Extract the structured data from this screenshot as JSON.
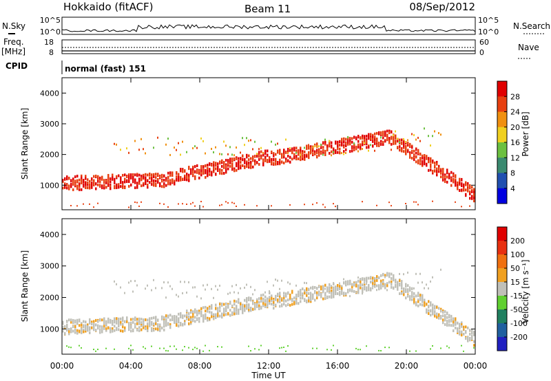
{
  "header": {
    "station": "Hokkaido (fitACF)",
    "beam": "Beam 11",
    "date": "08/Sep/2012"
  },
  "strip_panels": {
    "nsky_label": "N.Sky",
    "nsky_ticks": [
      "10^5",
      "10^0"
    ],
    "nsearch_label": "N.Search",
    "nsearch_ticks": [
      "10^5",
      "10^0"
    ],
    "freq_label": "Freq.",
    "freq_unit": "[MHz]",
    "freq_ticks": [
      "18",
      "8"
    ],
    "nave_label": "Nave",
    "nave_ticks": [
      "60",
      "0"
    ],
    "cpid_label": "CPID",
    "cpid_value": "normal (fast) 151"
  },
  "chart_data": [
    {
      "type": "heatmap",
      "panel": "power",
      "ylabel": "Slant Range [km]",
      "xlabel": "",
      "y_ticks": [
        "1000",
        "2000",
        "3000",
        "4000"
      ],
      "ylim": [
        200,
        4500
      ],
      "xlim": [
        "00:00",
        "24:00"
      ],
      "colorbar": {
        "label": "Power [dB]",
        "ticks": [
          "28",
          "24",
          "20",
          "16",
          "12",
          "8",
          "4"
        ],
        "colors": [
          "#0000e0",
          "#2050b0",
          "#3a8a70",
          "#6cc040",
          "#f0d020",
          "#f09010",
          "#e84010",
          "#e00000"
        ]
      }
    },
    {
      "type": "heatmap",
      "panel": "velocity",
      "ylabel": "Slant Range [km]",
      "xlabel": "Time UT",
      "y_ticks": [
        "1000",
        "2000",
        "3000",
        "4000"
      ],
      "ylim": [
        200,
        4500
      ],
      "x_ticks": [
        "00:00",
        "04:00",
        "08:00",
        "12:00",
        "16:00",
        "20:00",
        "00:00"
      ],
      "colorbar": {
        "label": "Velocity [m s⁻¹]",
        "ticks": [
          "200",
          "100",
          "50",
          "15",
          "-15",
          "-50",
          "-100",
          "-200"
        ],
        "colors": [
          "#2020c0",
          "#2060a0",
          "#208060",
          "#60d030",
          "#c0c0b8",
          "#f0a020",
          "#f07010",
          "#e83010",
          "#e00000"
        ]
      }
    }
  ]
}
